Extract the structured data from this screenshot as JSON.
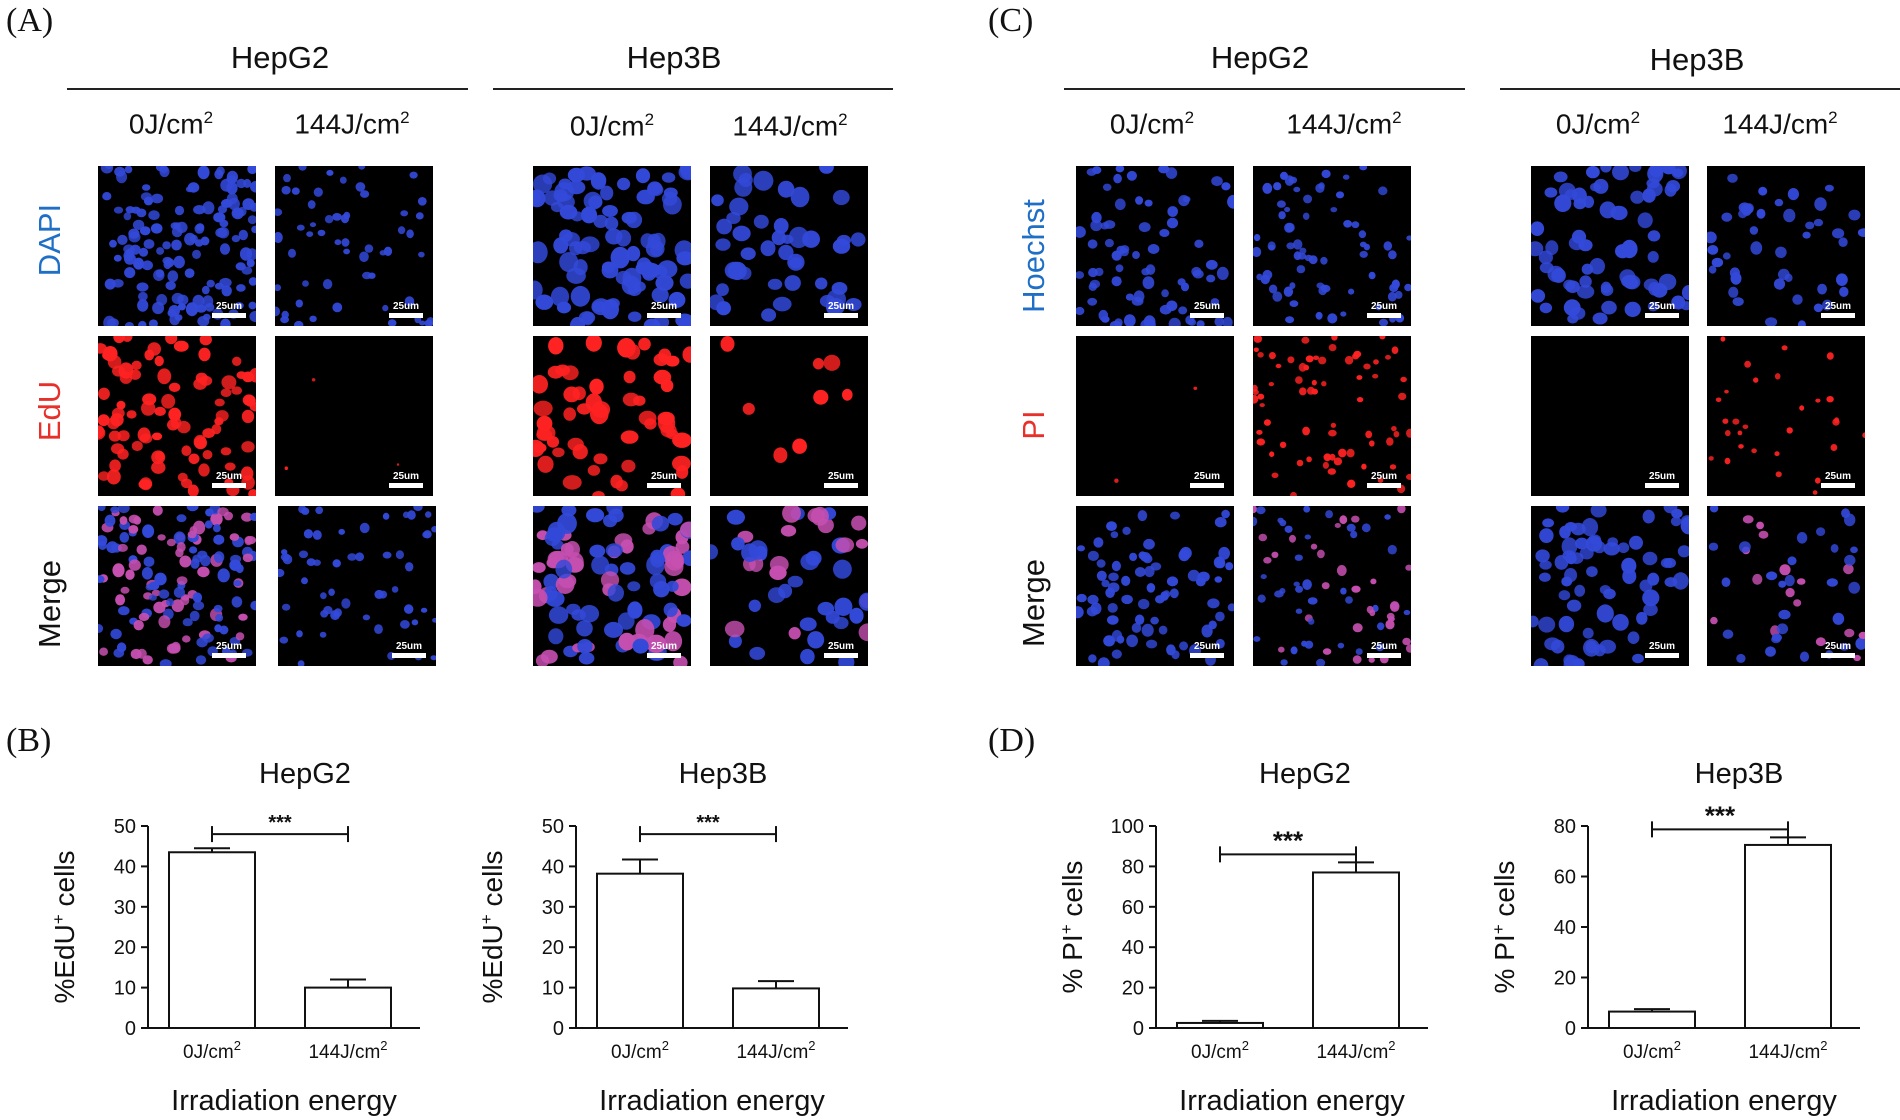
{
  "figure": {
    "panels": {
      "A": "(A)",
      "B": "(B)",
      "C": "(C)",
      "D": "(D)"
    },
    "cell_lines": {
      "hepg2": "HepG2",
      "hep3b": "Hep3B"
    },
    "doses": {
      "zero_num": "0J/cm",
      "high_num": "144J/cm",
      "exp": "2"
    },
    "row_labels_edu": {
      "dapi": "DAPI",
      "edu": "EdU",
      "merge": "Merge"
    },
    "row_labels_pi": {
      "hoechst": "Hoechst",
      "pi": "PI",
      "merge": "Merge"
    },
    "scale_bar": "25um",
    "colors": {
      "blue_label": "#1f6fc6",
      "red_label": "#e8302a",
      "blue_nuclei": "#3349d9",
      "red_nuclei": "#ff2222",
      "merge_nuclei": "#c64fb0"
    }
  },
  "chart_data": [
    {
      "panel": "B",
      "type": "bar",
      "title": "HepG2",
      "categories": [
        "0J/cm2",
        "144J/cm2"
      ],
      "values": [
        43.5,
        10
      ],
      "errors": [
        1,
        2
      ],
      "ylabel": "%EdU+ cells",
      "xlabel": "Irradiation energy",
      "ylim": [
        0,
        50
      ],
      "yticks": [
        "0",
        "10",
        "20",
        "30",
        "40",
        "50"
      ],
      "significance": "***"
    },
    {
      "panel": "B",
      "type": "bar",
      "title": "Hep3B",
      "categories": [
        "0J/cm2",
        "144J/cm2"
      ],
      "values": [
        38.2,
        9.8
      ],
      "errors": [
        3.5,
        1.8
      ],
      "ylabel": "%EdU+ cells",
      "xlabel": "Irradiation energy",
      "ylim": [
        0,
        50
      ],
      "yticks": [
        "0",
        "10",
        "20",
        "30",
        "40",
        "50"
      ],
      "significance": "***"
    },
    {
      "panel": "D",
      "type": "bar",
      "title": "HepG2",
      "categories": [
        "0J/cm2",
        "144J/cm2"
      ],
      "values": [
        2.5,
        77
      ],
      "errors": [
        1,
        5
      ],
      "ylabel": "% PI+ cells",
      "xlabel": "Irradiation energy",
      "ylim": [
        0,
        100
      ],
      "yticks": [
        "0",
        "20",
        "40",
        "60",
        "80",
        "100"
      ],
      "significance": "***"
    },
    {
      "panel": "D",
      "type": "bar",
      "title": "Hep3B",
      "categories": [
        "0J/cm2",
        "144J/cm2"
      ],
      "values": [
        6.5,
        72.5
      ],
      "errors": [
        1,
        3
      ],
      "ylabel": "% PI+ cells",
      "xlabel": "Irradiation energy",
      "ylim": [
        0,
        80
      ],
      "yticks": [
        "0",
        "20",
        "40",
        "60",
        "80"
      ],
      "significance": "***"
    }
  ]
}
